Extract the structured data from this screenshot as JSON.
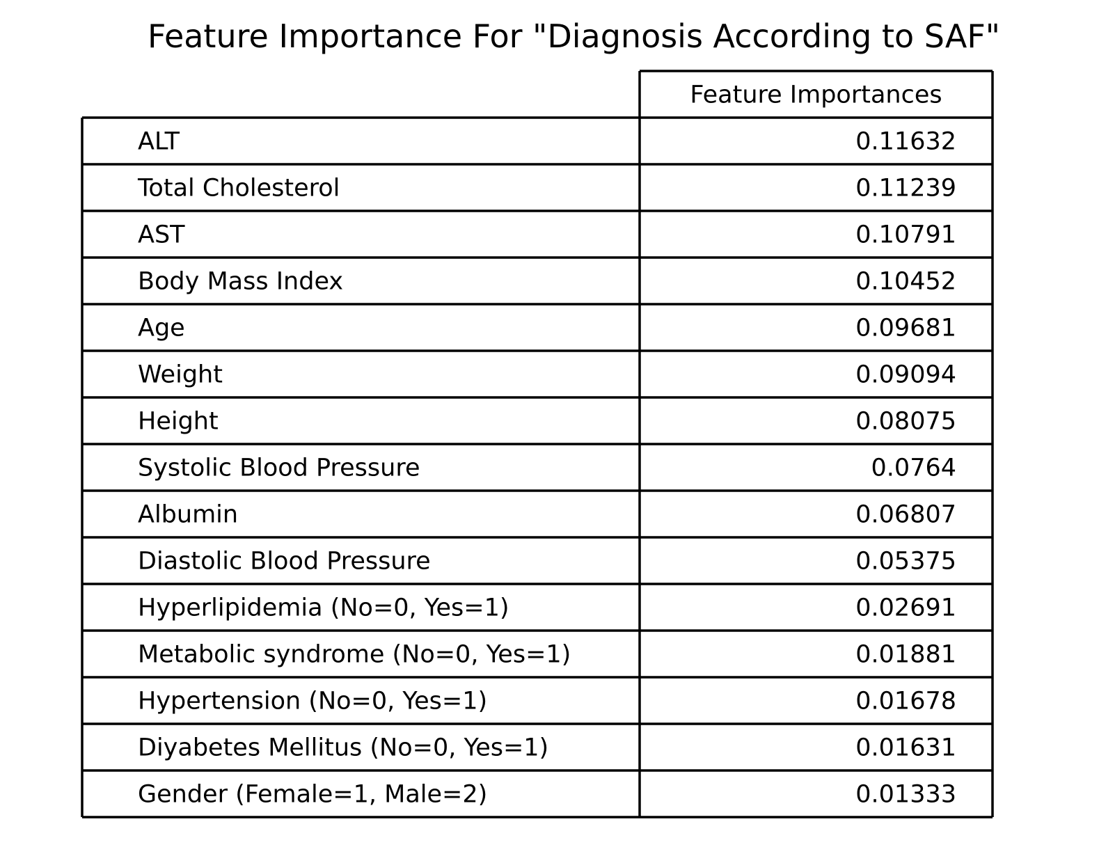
{
  "chart_data": {
    "type": "table",
    "title": "Feature Importance For \"Diagnosis According to SAF\"",
    "column_header": "Feature Importances",
    "rows": [
      {
        "label": "ALT",
        "value": "0.11632"
      },
      {
        "label": "Total Cholesterol",
        "value": "0.11239"
      },
      {
        "label": "AST",
        "value": "0.10791"
      },
      {
        "label": "Body Mass Index",
        "value": "0.10452"
      },
      {
        "label": "Age",
        "value": "0.09681"
      },
      {
        "label": "Weight",
        "value": "0.09094"
      },
      {
        "label": "Height",
        "value": "0.08075"
      },
      {
        "label": "Systolic Blood Pressure",
        "value": "0.0764"
      },
      {
        "label": "Albumin",
        "value": "0.06807"
      },
      {
        "label": "Diastolic Blood Pressure",
        "value": "0.05375"
      },
      {
        "label": "Hyperlipidemia (No=0, Yes=1)",
        "value": "0.02691"
      },
      {
        "label": "Metabolic syndrome (No=0, Yes=1)",
        "value": "0.01881"
      },
      {
        "label": "Hypertension (No=0, Yes=1)",
        "value": "0.01678"
      },
      {
        "label": "Diyabetes Mellitus (No=0, Yes=1)",
        "value": "0.01631"
      },
      {
        "label": "Gender (Female=1, Male=2)",
        "value": "0.01333"
      }
    ]
  }
}
